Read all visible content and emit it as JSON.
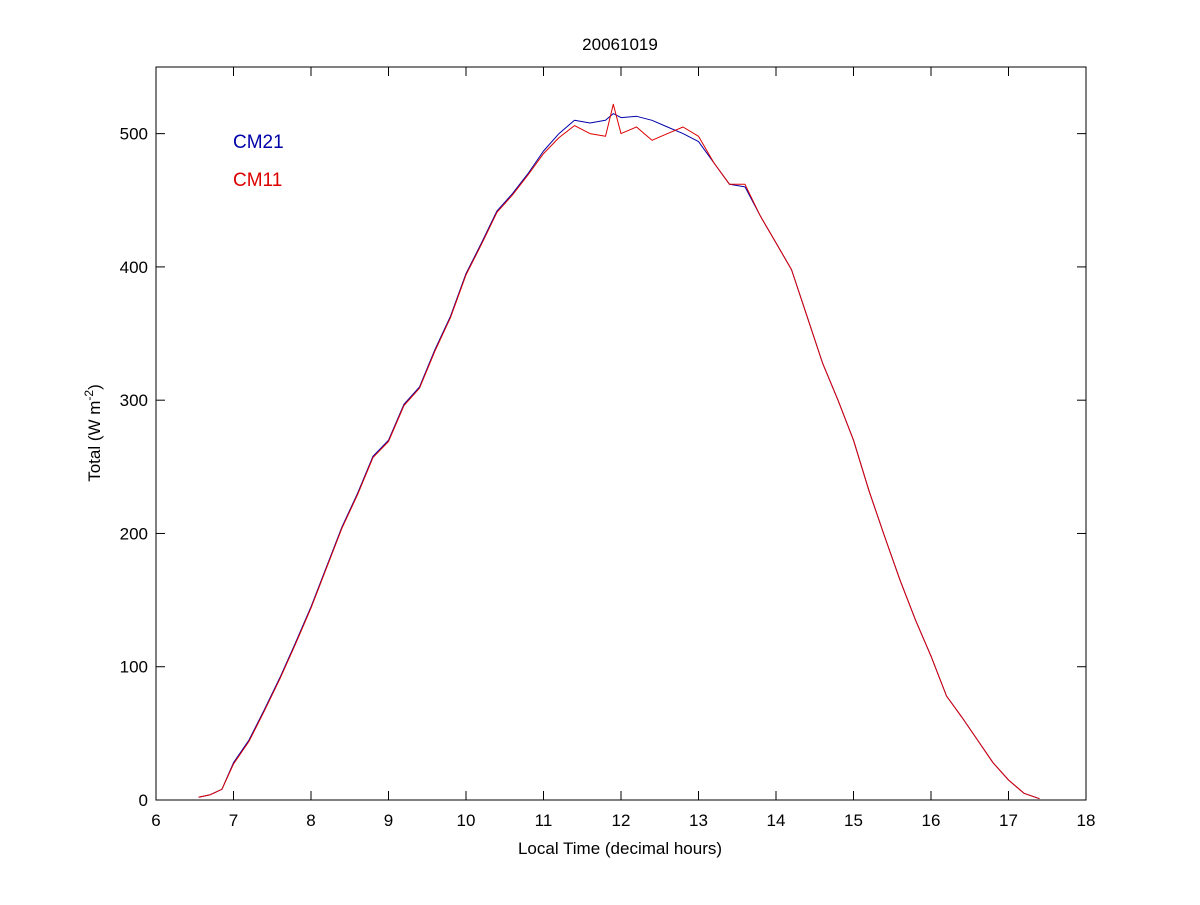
{
  "chart_data": {
    "type": "line",
    "title": "20061019",
    "xlabel": "Local Time (decimal hours)",
    "ylabel": "Total (W m",
    "ylabel_sup": "-2",
    "ylabel_close": ")",
    "xlim": [
      6,
      18
    ],
    "ylim": [
      0,
      550
    ],
    "xticks": [
      6,
      7,
      8,
      9,
      10,
      11,
      12,
      13,
      14,
      15,
      16,
      17,
      18
    ],
    "yticks": [
      0,
      100,
      200,
      300,
      400,
      500
    ],
    "grid": false,
    "legend_position": "top-left",
    "series": [
      {
        "name": "CM21",
        "color": "#0000aa",
        "x": [
          6.55,
          6.7,
          6.85,
          7.0,
          7.2,
          7.4,
          7.6,
          7.8,
          8.0,
          8.2,
          8.4,
          8.6,
          8.8,
          9.0,
          9.2,
          9.4,
          9.6,
          9.8,
          10.0,
          10.2,
          10.4,
          10.6,
          10.8,
          11.0,
          11.2,
          11.4,
          11.6,
          11.8,
          11.9,
          12.0,
          12.2,
          12.4,
          12.6,
          12.8,
          13.0,
          13.2,
          13.4,
          13.6,
          13.8,
          14.0,
          14.2,
          14.4,
          14.6,
          14.8,
          15.0,
          15.2,
          15.4,
          15.6,
          15.8,
          16.0,
          16.2,
          16.4,
          16.6,
          16.8,
          17.0,
          17.2,
          17.4
        ],
        "y": [
          2,
          4,
          8,
          28,
          45,
          68,
          92,
          118,
          145,
          175,
          205,
          230,
          258,
          270,
          297,
          310,
          338,
          363,
          395,
          418,
          442,
          455,
          470,
          487,
          500,
          510,
          508,
          510,
          515,
          512,
          513,
          510,
          505,
          500,
          494,
          478,
          462,
          460,
          438,
          418,
          398,
          363,
          328,
          300,
          270,
          232,
          198,
          165,
          135,
          108,
          78,
          62,
          45,
          28,
          15,
          5,
          1
        ]
      },
      {
        "name": "CM11",
        "color": "#dd0000",
        "x": [
          6.55,
          6.7,
          6.85,
          7.0,
          7.2,
          7.4,
          7.6,
          7.8,
          8.0,
          8.2,
          8.4,
          8.6,
          8.8,
          9.0,
          9.2,
          9.4,
          9.6,
          9.8,
          10.0,
          10.2,
          10.4,
          10.6,
          10.8,
          11.0,
          11.2,
          11.4,
          11.6,
          11.8,
          11.9,
          12.0,
          12.2,
          12.4,
          12.6,
          12.8,
          13.0,
          13.2,
          13.4,
          13.6,
          13.8,
          14.0,
          14.2,
          14.4,
          14.6,
          14.8,
          15.0,
          15.2,
          15.4,
          15.6,
          15.8,
          16.0,
          16.2,
          16.4,
          16.6,
          16.8,
          17.0,
          17.2,
          17.4
        ],
        "y": [
          2,
          4,
          8,
          27,
          44,
          67,
          91,
          117,
          144,
          174,
          204,
          229,
          257,
          269,
          296,
          309,
          337,
          362,
          394,
          417,
          441,
          454,
          469,
          485,
          497,
          506,
          500,
          498,
          522,
          500,
          505,
          495,
          500,
          505,
          498,
          478,
          462,
          462,
          438,
          418,
          398,
          363,
          328,
          300,
          270,
          232,
          198,
          165,
          135,
          108,
          78,
          62,
          45,
          28,
          15,
          5,
          1
        ]
      }
    ]
  }
}
